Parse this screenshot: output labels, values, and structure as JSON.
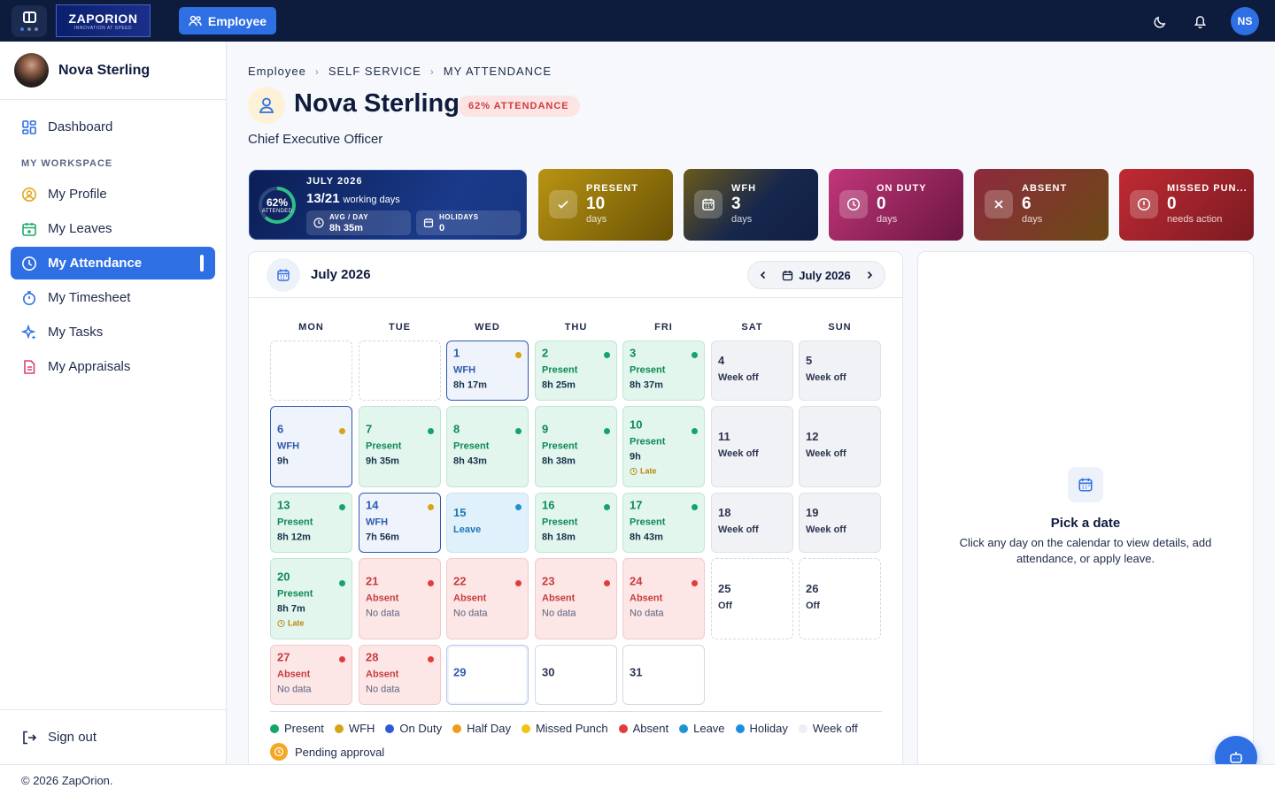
{
  "topbar": {
    "logo_text": "ZAPORION",
    "logo_tagline": "INNOVATION AT SPEED",
    "role_button": "Employee",
    "user_initials": "NS"
  },
  "sidebar": {
    "user_name": "Nova Sterling",
    "section_label": "MY WORKSPACE",
    "items": [
      {
        "label": "Dashboard",
        "icon": "grid-icon"
      },
      {
        "label": "My Profile",
        "icon": "user-circle-icon"
      },
      {
        "label": "My Leaves",
        "icon": "calendar-plus-icon"
      },
      {
        "label": "My Attendance",
        "icon": "clock-icon"
      },
      {
        "label": "My Timesheet",
        "icon": "stopwatch-icon"
      },
      {
        "label": "My Tasks",
        "icon": "sparkle-icon"
      },
      {
        "label": "My Appraisals",
        "icon": "document-icon"
      }
    ],
    "sign_out": "Sign out"
  },
  "breadcrumb": [
    "Employee",
    "SELF SERVICE",
    "MY ATTENDANCE"
  ],
  "page": {
    "title": "Nova Sterling",
    "badge": "62% ATTENDANCE",
    "subtitle": "Chief Executive Officer"
  },
  "summary": {
    "percent": "62%",
    "percent_label": "ATTENDED",
    "month": "JULY 2026",
    "days": "13/21",
    "days_suffix": "working days",
    "avg_label": "AVG / DAY",
    "avg_value": "8h 35m",
    "holidays_label": "HOLIDAYS",
    "holidays_value": "0"
  },
  "stats": [
    {
      "label": "PRESENT",
      "value": "10",
      "sub": "days",
      "icon": "check-icon",
      "color": "#b38d0d"
    },
    {
      "label": "WFH",
      "value": "3",
      "sub": "days",
      "icon": "calendar-icon",
      "color": "#14254a"
    },
    {
      "label": "ON DUTY",
      "value": "0",
      "sub": "days",
      "icon": "clock-icon",
      "color": "#b03068"
    },
    {
      "label": "ABSENT",
      "value": "6",
      "sub": "days",
      "icon": "close-icon",
      "color": "#8e2a3a"
    },
    {
      "label": "MISSED PUN...",
      "value": "0",
      "sub": "needs action",
      "icon": "alert-icon",
      "color": "#b8262f"
    }
  ],
  "calendar": {
    "title": "July 2026",
    "nav_label": "July 2026",
    "weekdays": [
      "MON",
      "TUE",
      "WED",
      "THU",
      "FRI",
      "SAT",
      "SUN"
    ],
    "days": [
      {
        "d": "",
        "type": "empty"
      },
      {
        "d": "",
        "type": "empty"
      },
      {
        "d": "1",
        "type": "wfh",
        "status": "WFH",
        "hours": "8h 17m"
      },
      {
        "d": "2",
        "type": "present",
        "status": "Present",
        "hours": "8h 25m"
      },
      {
        "d": "3",
        "type": "present",
        "status": "Present",
        "hours": "8h 37m"
      },
      {
        "d": "4",
        "type": "week",
        "status": "Week off"
      },
      {
        "d": "5",
        "type": "week",
        "status": "Week off"
      },
      {
        "d": "6",
        "type": "wfh",
        "status": "WFH",
        "hours": "9h"
      },
      {
        "d": "7",
        "type": "present",
        "status": "Present",
        "hours": "9h 35m"
      },
      {
        "d": "8",
        "type": "present",
        "status": "Present",
        "hours": "8h 43m"
      },
      {
        "d": "9",
        "type": "present",
        "status": "Present",
        "hours": "8h 38m"
      },
      {
        "d": "10",
        "type": "present",
        "status": "Present",
        "hours": "9h",
        "late": "Late"
      },
      {
        "d": "11",
        "type": "week",
        "status": "Week off"
      },
      {
        "d": "12",
        "type": "week",
        "status": "Week off"
      },
      {
        "d": "13",
        "type": "present",
        "status": "Present",
        "hours": "8h 12m"
      },
      {
        "d": "14",
        "type": "wfh",
        "status": "WFH",
        "hours": "7h 56m"
      },
      {
        "d": "15",
        "type": "leave",
        "status": "Leave"
      },
      {
        "d": "16",
        "type": "present",
        "status": "Present",
        "hours": "8h 18m"
      },
      {
        "d": "17",
        "type": "present",
        "status": "Present",
        "hours": "8h 43m"
      },
      {
        "d": "18",
        "type": "week",
        "status": "Week off"
      },
      {
        "d": "19",
        "type": "week",
        "status": "Week off"
      },
      {
        "d": "20",
        "type": "present",
        "status": "Present",
        "hours": "8h 7m",
        "late": "Late"
      },
      {
        "d": "21",
        "type": "absent",
        "status": "Absent",
        "hours": "No data"
      },
      {
        "d": "22",
        "type": "absent",
        "status": "Absent",
        "hours": "No data"
      },
      {
        "d": "23",
        "type": "absent",
        "status": "Absent",
        "hours": "No data"
      },
      {
        "d": "24",
        "type": "absent",
        "status": "Absent",
        "hours": "No data"
      },
      {
        "d": "25",
        "type": "off",
        "status": "Off"
      },
      {
        "d": "26",
        "type": "off",
        "status": "Off"
      },
      {
        "d": "27",
        "type": "absent",
        "status": "Absent",
        "hours": "No data"
      },
      {
        "d": "28",
        "type": "absent",
        "status": "Absent",
        "hours": "No data"
      },
      {
        "d": "29",
        "type": "today"
      },
      {
        "d": "30",
        "type": "future"
      },
      {
        "d": "31",
        "type": "future"
      }
    ],
    "legend": [
      {
        "label": "Present",
        "color": "#16a36a"
      },
      {
        "label": "WFH",
        "color": "#d4a514"
      },
      {
        "label": "On Duty",
        "color": "#2f5ad6"
      },
      {
        "label": "Half Day",
        "color": "#f09b1a"
      },
      {
        "label": "Missed Punch",
        "color": "#f1c40f"
      },
      {
        "label": "Absent",
        "color": "#e03c3c"
      },
      {
        "label": "Leave",
        "color": "#1c94d4"
      },
      {
        "label": "Holiday",
        "color": "#1a8ee0"
      },
      {
        "label": "Week off",
        "color": "#eceef2"
      }
    ],
    "pending": "Pending approval"
  },
  "detail": {
    "title": "Pick a date",
    "text": "Click any day on the calendar to view details, add attendance, or apply leave."
  },
  "footer": "© 2026 ZapOrion."
}
